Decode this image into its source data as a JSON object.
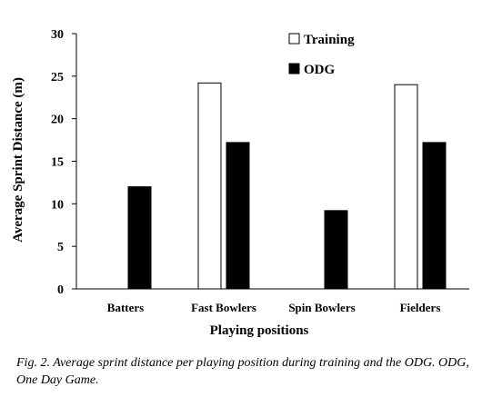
{
  "chart_data": {
    "type": "bar",
    "title": "",
    "xlabel": "Playing positions",
    "ylabel": "Average Sprint Distance (m)",
    "ylim": [
      0,
      30
    ],
    "yticks": [
      0,
      5,
      10,
      15,
      20,
      25,
      30
    ],
    "categories": [
      "Batters",
      "Fast Bowlers",
      "Spin Bowlers",
      "Fielders"
    ],
    "series": [
      {
        "name": "Training",
        "values": [
          null,
          24.2,
          null,
          24.0
        ],
        "color": "#ffffff"
      },
      {
        "name": "ODG",
        "values": [
          12.0,
          17.2,
          9.2,
          17.2
        ],
        "color": "#000000"
      }
    ],
    "legend_position": "top-right",
    "grid": false
  },
  "caption": "Fig. 2. Average sprint distance per playing position during training and the ODG. ODG, One Day Game."
}
